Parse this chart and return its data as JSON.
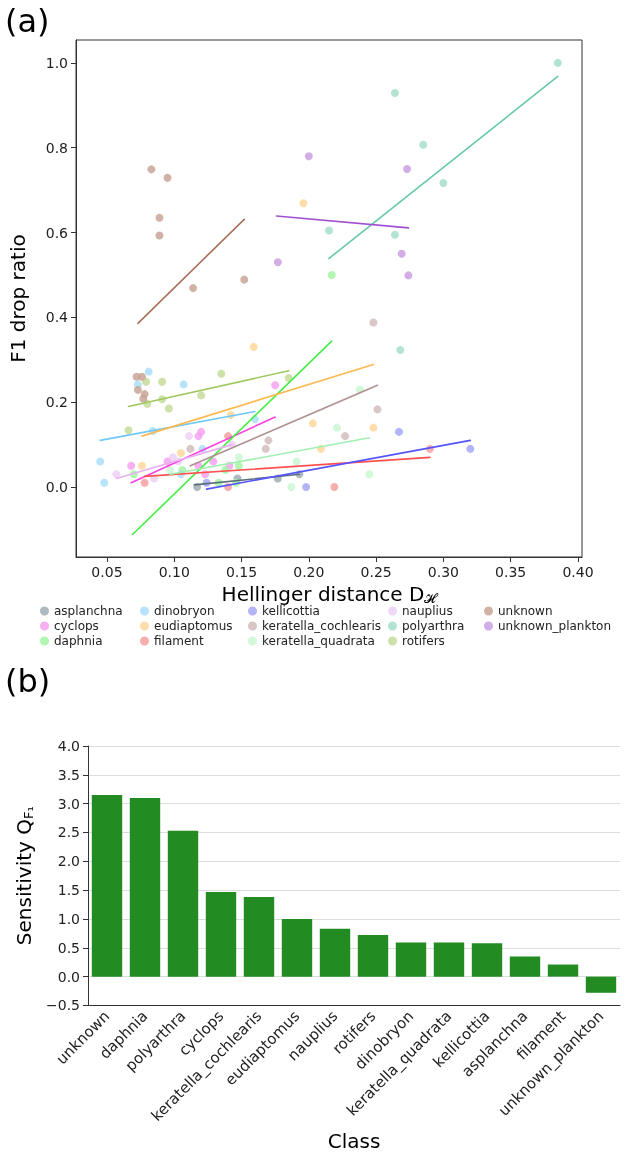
{
  "chart_data": [
    {
      "type": "scatter",
      "title": "(a)",
      "xlabel": "Hellinger distance D$_{𝓗}$",
      "ylabel": "F1 drop ratio",
      "xlim": [
        0.027,
        0.403
      ],
      "ylim": [
        -0.165,
        1.054
      ],
      "xticks": [
        {
          "value": 0.05,
          "label": "0.05"
        },
        {
          "value": 0.1,
          "label": "0.10"
        },
        {
          "value": 0.15,
          "label": "0.15"
        },
        {
          "value": 0.2,
          "label": "0.20"
        },
        {
          "value": 0.25,
          "label": "0.25"
        },
        {
          "value": 0.3,
          "label": "0.30"
        },
        {
          "value": 0.35,
          "label": "0.35"
        },
        {
          "value": 0.4,
          "label": "0.40"
        }
      ],
      "yticks": [
        {
          "value": 0,
          "label": "0.0"
        },
        0.2,
        0.4,
        0.6,
        0.8,
        {
          "value": 1,
          "label": "1.0"
        }
      ],
      "legend": "bottom",
      "marker": "circle",
      "series": [
        {
          "name": "asplanchna",
          "color": "#9aa8b0",
          "x": [
            0.117,
            0.147,
            0.177,
            0.193
          ],
          "values": [
            0.0,
            0.02,
            0.02,
            0.03
          ]
        },
        {
          "name": "cyclops",
          "color": "#f59ef0",
          "x": [
            0.068,
            0.118,
            0.12,
            0.095,
            0.118,
            0.123,
            0.129,
            0.141,
            0.175
          ],
          "values": [
            0.05,
            0.12,
            0.13,
            0.06,
            0.05,
            0.03,
            0.06,
            0.05,
            0.24
          ]
        },
        {
          "name": "daphnia",
          "color": "#9ef59e",
          "x": [
            0.07,
            0.106,
            0.133,
            0.138,
            0.148,
            0.146,
            0.217
          ],
          "values": [
            0.03,
            0.04,
            0.01,
            0.04,
            0.05,
            0.01,
            0.5
          ]
        },
        {
          "name": "dinobryon",
          "color": "#a8dcfa",
          "x": [
            0.045,
            0.048,
            0.073,
            0.081,
            0.107,
            0.121,
            0.16,
            0.105,
            0.084
          ],
          "values": [
            0.06,
            0.01,
            0.242,
            0.272,
            0.242,
            0.09,
            0.16,
            0.03,
            0.132
          ]
        },
        {
          "name": "eudiaptomus",
          "color": "#fcd696",
          "x": [
            0.076,
            0.105,
            0.142,
            0.159,
            0.203,
            0.209,
            0.248,
            0.196
          ],
          "values": [
            0.05,
            0.08,
            0.17,
            0.33,
            0.15,
            0.09,
            0.14,
            0.669
          ]
        },
        {
          "name": "filament",
          "color": "#f59a9a",
          "x": [
            0.078,
            0.14,
            0.14,
            0.219,
            0.29
          ],
          "values": [
            0.01,
            0.12,
            0.0,
            0.0,
            0.09
          ]
        },
        {
          "name": "kellicottia",
          "color": "#a0a0f5",
          "x": [
            0.124,
            0.198,
            0.267,
            0.32
          ],
          "values": [
            0.01,
            0.0,
            0.13,
            0.09
          ]
        },
        {
          "name": "keratella_cochlearis",
          "color": "#cfb8b8",
          "x": [
            0.112,
            0.168,
            0.17,
            0.227,
            0.251,
            0.248
          ],
          "values": [
            0.09,
            0.09,
            0.11,
            0.12,
            0.183,
            0.388
          ]
        },
        {
          "name": "keratella_quadrata",
          "color": "#c8f5d0",
          "x": [
            0.097,
            0.148,
            0.191,
            0.187,
            0.221,
            0.238,
            0.245
          ],
          "values": [
            0.04,
            0.07,
            0.06,
            0.0,
            0.14,
            0.23,
            0.03
          ]
        },
        {
          "name": "nauplius",
          "color": "#eccdf2",
          "x": [
            0.057,
            0.085,
            0.099,
            0.103,
            0.111,
            0.143
          ],
          "values": [
            0.03,
            0.02,
            0.07,
            0.06,
            0.12,
            0.1
          ]
        },
        {
          "name": "polyarthra",
          "color": "#a0dcc6",
          "x": [
            0.385,
            0.264,
            0.285,
            0.3,
            0.264,
            0.215,
            0.268
          ],
          "values": [
            1.0,
            0.929,
            0.807,
            0.717,
            0.595,
            0.605,
            0.323
          ]
        },
        {
          "name": "rotifers",
          "color": "#c2da94",
          "x": [
            0.079,
            0.091,
            0.135,
            0.12,
            0.091,
            0.08,
            0.096,
            0.066,
            0.185
          ],
          "values": [
            0.248,
            0.248,
            0.267,
            0.216,
            0.207,
            0.196,
            0.185,
            0.134,
            0.257
          ]
        },
        {
          "name": "unknown",
          "color": "#c4a090",
          "x": [
            0.083,
            0.095,
            0.089,
            0.089,
            0.114,
            0.152,
            0.072,
            0.076,
            0.073,
            0.078,
            0.077
          ],
          "values": [
            0.749,
            0.729,
            0.635,
            0.593,
            0.469,
            0.489,
            0.26,
            0.26,
            0.229,
            0.219,
            0.208
          ]
        },
        {
          "name": "unknown_plankton",
          "color": "#c898e0",
          "x": [
            0.2,
            0.177,
            0.273,
            0.269,
            0.274
          ],
          "values": [
            0.78,
            0.53,
            0.75,
            0.55,
            0.499
          ]
        },
        {
          "type": "line",
          "marker": "none",
          "color": "#5a6e7a",
          "x": [
            0.115,
            0.193
          ],
          "values": [
            0.005,
            0.03
          ]
        },
        {
          "type": "line",
          "marker": "none",
          "color": "#ff40e0",
          "x": [
            0.068,
            0.175
          ],
          "values": [
            0.01,
            0.165
          ]
        },
        {
          "type": "line",
          "marker": "none",
          "color": "#44ee44",
          "x": [
            0.069,
            0.217
          ],
          "values": [
            -0.112,
            0.344
          ]
        },
        {
          "type": "line",
          "marker": "none",
          "color": "#70c8f8",
          "x": [
            0.045,
            0.16
          ],
          "values": [
            0.11,
            0.178
          ]
        },
        {
          "type": "line",
          "marker": "none",
          "color": "#ffb84d",
          "x": [
            0.076,
            0.248
          ],
          "values": [
            0.12,
            0.289
          ]
        },
        {
          "type": "line",
          "marker": "none",
          "color": "#ff5050",
          "x": [
            0.078,
            0.29
          ],
          "values": [
            0.025,
            0.07
          ]
        },
        {
          "type": "line",
          "marker": "none",
          "color": "#5555ff",
          "x": [
            0.124,
            0.32
          ],
          "values": [
            -0.005,
            0.11
          ]
        },
        {
          "type": "line",
          "marker": "none",
          "color": "#b09090",
          "x": [
            0.112,
            0.251
          ],
          "values": [
            0.05,
            0.24
          ]
        },
        {
          "type": "line",
          "marker": "none",
          "color": "#a0f0b0",
          "x": [
            0.097,
            0.245
          ],
          "values": [
            0.03,
            0.116
          ]
        },
        {
          "type": "line",
          "marker": "none",
          "color": "#e8b0f0",
          "x": [
            0.057,
            0.143
          ],
          "values": [
            0.02,
            0.1
          ]
        },
        {
          "type": "line",
          "marker": "none",
          "color": "#66c8a8",
          "x": [
            0.215,
            0.385
          ],
          "values": [
            0.539,
            0.968
          ]
        },
        {
          "type": "line",
          "marker": "none",
          "color": "#a0c860",
          "x": [
            0.066,
            0.185
          ],
          "values": [
            0.19,
            0.274
          ]
        },
        {
          "type": "line",
          "marker": "none",
          "color": "#a87058",
          "x": [
            0.073,
            0.152
          ],
          "values": [
            0.386,
            0.631
          ]
        },
        {
          "type": "line",
          "marker": "none",
          "color": "#a050d0",
          "x": [
            0.176,
            0.274
          ],
          "values": [
            0.639,
            0.611
          ]
        }
      ]
    },
    {
      "type": "bar",
      "title": "(b)",
      "xlabel": "Class",
      "ylabel": "Sensitivity Q$_{F₁}$",
      "color": "#228b22",
      "grid": "y",
      "categories": [
        "unknown",
        "daphnia",
        "polyarthra",
        "cyclops",
        "keratella_cochlearis",
        "eudiaptomus",
        "nauplius",
        "rotifers",
        "dinobryon",
        "keratella_quadrata",
        "kellicottia",
        "asplanchna",
        "filament",
        "unknown_plankton"
      ],
      "values": [
        3.15,
        3.1,
        2.53,
        1.47,
        1.38,
        1.0,
        0.83,
        0.72,
        0.59,
        0.59,
        0.58,
        0.35,
        0.21,
        -0.28
      ],
      "ylim": [
        -0.5,
        4.0
      ],
      "yticks": [
        {
          "value": -0.5,
          "label": "−0.5"
        },
        {
          "value": 0,
          "label": "0.0"
        },
        0.5,
        {
          "value": 1,
          "label": "1.0"
        },
        1.5,
        {
          "value": 2,
          "label": "2.0"
        },
        2.5,
        {
          "value": 3,
          "label": "3.0"
        },
        3.5,
        {
          "value": 4,
          "label": "4.0"
        }
      ]
    }
  ]
}
